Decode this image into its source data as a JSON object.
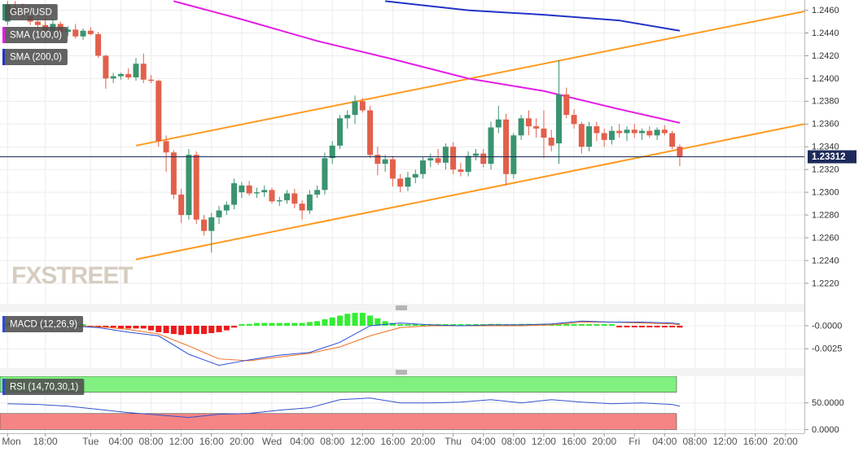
{
  "chart_data": [
    {
      "type": "candlestick",
      "title": "GBP/USD",
      "watermark": "FXSTREET",
      "up_color": "#3a9470",
      "down_color": "#e2604c",
      "last_price_color": "#1c2b5a",
      "xlim": [
        -12,
        94.5
      ],
      "ylim": [
        1.2202,
        1.2469
      ],
      "grid": true,
      "yticks": [
        {
          "value": 1.222,
          "label": "1.2220"
        },
        {
          "value": 1.224,
          "label": "1.2240"
        },
        {
          "value": 1.226,
          "label": "1.2260"
        },
        {
          "value": 1.228,
          "label": "1.2280"
        },
        {
          "value": 1.23,
          "label": "1.2300"
        },
        {
          "value": 1.232,
          "label": "1.2320"
        },
        {
          "value": 1.234,
          "label": "1.2340"
        },
        {
          "value": 1.236,
          "label": "1.2360"
        },
        {
          "value": 1.238,
          "label": "1.2380"
        },
        {
          "value": 1.24,
          "label": "1.2400"
        },
        {
          "value": 1.242,
          "label": "1.2420"
        },
        {
          "value": 1.244,
          "label": "1.2440"
        },
        {
          "value": 1.246,
          "label": "1.2460"
        }
      ],
      "x": [
        -11,
        -10,
        -9,
        -8,
        -7,
        -6,
        -5,
        -4,
        -3,
        -2,
        -1,
        0,
        1,
        2,
        3,
        4,
        5,
        6,
        7,
        8,
        9,
        10,
        11,
        12,
        13,
        14,
        15,
        16,
        17,
        18,
        19,
        20,
        21,
        22,
        23,
        24,
        25,
        26,
        27,
        28,
        29,
        30,
        31,
        32,
        33,
        34,
        35,
        36,
        37,
        38,
        39,
        40,
        41,
        42,
        43,
        44,
        45,
        46,
        47,
        48,
        49,
        50,
        51,
        52,
        53,
        54,
        55,
        56,
        57,
        58,
        59,
        60,
        61,
        62,
        63,
        64,
        65,
        66,
        67,
        68,
        69,
        70,
        71,
        72,
        73,
        74,
        75,
        76,
        77,
        78
      ],
      "open": [
        1.245,
        1.2462,
        1.2458,
        1.2455,
        1.245,
        1.2447,
        1.2442,
        1.2448,
        1.2441,
        1.2443,
        1.2437,
        1.2442,
        1.2439,
        1.242,
        1.24,
        1.2402,
        1.2404,
        1.2401,
        1.2413,
        1.2399,
        1.2398,
        1.2345,
        1.2335,
        1.2298,
        1.228,
        1.2333,
        1.2276,
        1.2266,
        1.2278,
        1.2284,
        1.2289,
        1.23,
        1.2306,
        1.2299,
        1.23,
        1.2302,
        1.2292,
        1.2293,
        1.2299,
        1.229,
        1.2284,
        1.2298,
        1.2302,
        1.233,
        1.2341,
        1.2365,
        1.2368,
        1.238,
        1.2372,
        1.2333,
        1.2325,
        1.2329,
        1.2312,
        1.2305,
        1.2313,
        1.2316,
        1.2328,
        1.233,
        1.2326,
        1.234,
        1.232,
        1.2318,
        1.2332,
        1.2334,
        1.2325,
        1.2357,
        1.2364,
        1.2316,
        1.235,
        1.2365,
        1.2358,
        1.2356,
        1.2348,
        1.2343,
        1.2386,
        1.2368,
        1.236,
        1.234,
        1.2358,
        1.2352,
        1.2346,
        1.2354,
        1.2352,
        1.2355,
        1.2352,
        1.2354,
        1.235,
        1.2355,
        1.2352,
        1.234
      ],
      "high": [
        1.2468,
        1.2468,
        1.2466,
        1.246,
        1.2458,
        1.2455,
        1.2452,
        1.245,
        1.2446,
        1.2448,
        1.2444,
        1.2445,
        1.2441,
        1.2421,
        1.2405,
        1.2405,
        1.2409,
        1.2418,
        1.2422,
        1.2403,
        1.2399,
        1.235,
        1.2337,
        1.2303,
        1.2338,
        1.2336,
        1.228,
        1.2282,
        1.2288,
        1.2292,
        1.2312,
        1.2309,
        1.231,
        1.2304,
        1.2306,
        1.2304,
        1.2296,
        1.2302,
        1.2303,
        1.2293,
        1.2302,
        1.2306,
        1.2335,
        1.2345,
        1.2368,
        1.2372,
        1.2385,
        1.2383,
        1.2376,
        1.234,
        1.2333,
        1.2332,
        1.2316,
        1.2318,
        1.232,
        1.2331,
        1.2334,
        1.2338,
        1.2343,
        1.2344,
        1.2326,
        1.2336,
        1.2338,
        1.2338,
        1.2362,
        1.2376,
        1.2369,
        1.2352,
        1.2368,
        1.2372,
        1.2365,
        1.2372,
        1.2355,
        1.2416,
        1.2392,
        1.2373,
        1.2362,
        1.2362,
        1.2362,
        1.2356,
        1.2358,
        1.236,
        1.2358,
        1.236,
        1.2356,
        1.2358,
        1.2357,
        1.2359,
        1.2354,
        1.2342
      ],
      "low": [
        1.2447,
        1.2455,
        1.2452,
        1.2447,
        1.2445,
        1.244,
        1.2438,
        1.2439,
        1.2437,
        1.2435,
        1.2434,
        1.2438,
        1.2418,
        1.2391,
        1.2396,
        1.2399,
        1.2399,
        1.2398,
        1.2396,
        1.2396,
        1.234,
        1.2318,
        1.2294,
        1.2273,
        1.2276,
        1.2272,
        1.2262,
        1.2247,
        1.2272,
        1.228,
        1.2285,
        1.2295,
        1.2297,
        1.2295,
        1.2296,
        1.229,
        1.2288,
        1.229,
        1.2286,
        1.2276,
        1.2281,
        1.2295,
        1.2298,
        1.2325,
        1.2338,
        1.2356,
        1.236,
        1.237,
        1.233,
        1.2315,
        1.2318,
        1.2305,
        1.23,
        1.2301,
        1.2308,
        1.2312,
        1.2322,
        1.2324,
        1.232,
        1.2316,
        1.2314,
        1.2314,
        1.2328,
        1.2322,
        1.232,
        1.2352,
        1.2306,
        1.2312,
        1.2346,
        1.235,
        1.2348,
        1.233,
        1.2336,
        1.2325,
        1.2365,
        1.2356,
        1.2334,
        1.2336,
        1.2345,
        1.234,
        1.2342,
        1.2348,
        1.2345,
        1.2348,
        1.2346,
        1.2348,
        1.2346,
        1.235,
        1.2338,
        1.2323
      ],
      "close": [
        1.2465,
        1.2458,
        1.2455,
        1.245,
        1.2447,
        1.2442,
        1.2448,
        1.2441,
        1.2443,
        1.2437,
        1.2442,
        1.2439,
        1.242,
        1.24,
        1.2402,
        1.2404,
        1.2401,
        1.2413,
        1.2399,
        1.2398,
        1.2345,
        1.2335,
        1.2298,
        1.228,
        1.2333,
        1.2276,
        1.2266,
        1.2278,
        1.2284,
        1.2289,
        1.2308,
        1.2306,
        1.2299,
        1.23,
        1.2302,
        1.2292,
        1.2293,
        1.2299,
        1.229,
        1.2284,
        1.2298,
        1.2302,
        1.233,
        1.2341,
        1.2365,
        1.2368,
        1.238,
        1.2372,
        1.2333,
        1.2325,
        1.2329,
        1.2312,
        1.2305,
        1.2313,
        1.2316,
        1.2328,
        1.233,
        1.2326,
        1.234,
        1.232,
        1.2318,
        1.2332,
        1.2334,
        1.2325,
        1.2357,
        1.2364,
        1.2316,
        1.235,
        1.2365,
        1.2358,
        1.2356,
        1.2348,
        1.2341,
        1.2386,
        1.2368,
        1.236,
        1.234,
        1.2358,
        1.2352,
        1.2346,
        1.2354,
        1.2352,
        1.2355,
        1.2352,
        1.2354,
        1.235,
        1.2355,
        1.2352,
        1.234,
        1.23312
      ],
      "lines": [
        {
          "name": "SMA (100,0)",
          "color": "#e41ee4",
          "x": [
            11,
            20,
            30,
            40,
            50,
            60,
            70,
            78
          ],
          "values": [
            1.2468,
            1.2452,
            1.2433,
            1.2417,
            1.24,
            1.2389,
            1.2373,
            1.2361
          ]
        },
        {
          "name": "SMA (200,0)",
          "color": "#2234c8",
          "x": [
            39,
            50,
            60,
            70,
            78
          ],
          "values": [
            1.2468,
            1.246,
            1.2456,
            1.2451,
            1.2442
          ]
        }
      ],
      "trendlines": [
        {
          "color": "#ff9a1f",
          "x": [
            6,
            94.5
          ],
          "values": [
            1.2341,
            1.2459
          ]
        },
        {
          "color": "#ff9a1f",
          "x": [
            6,
            94.5
          ],
          "values": [
            1.2241,
            1.236
          ]
        }
      ]
    },
    {
      "type": "macd",
      "title": "MACD (12,26,9)",
      "xlim": [
        -12,
        94.5
      ],
      "ylim": [
        -0.0046,
        0.0015
      ],
      "grid": true,
      "yticks": [
        {
          "value": -0.0025,
          "label": "-0.0025"
        },
        {
          "value": 0,
          "label": "-0.0000"
        }
      ],
      "histogram": {
        "up_color": "#33ee33",
        "down_color": "#ee1a1a",
        "x": [
          -11,
          -10,
          -9,
          -8,
          -7,
          -6,
          -5,
          -4,
          -3,
          -2,
          -1,
          0,
          1,
          2,
          3,
          4,
          5,
          6,
          7,
          8,
          9,
          10,
          11,
          12,
          13,
          14,
          15,
          16,
          17,
          18,
          19,
          20,
          21,
          22,
          23,
          24,
          25,
          26,
          27,
          28,
          29,
          30,
          31,
          32,
          33,
          34,
          35,
          36,
          37,
          38,
          39,
          40,
          41,
          42,
          43,
          44,
          45,
          46,
          47,
          48,
          49,
          50,
          51,
          52,
          53,
          54,
          55,
          56,
          57,
          58,
          59,
          60,
          61,
          62,
          63,
          64,
          65,
          66,
          67,
          68,
          69,
          70,
          71,
          72,
          73,
          74,
          75,
          76,
          77,
          78
        ],
        "values": [
          0.0001,
          0.0001,
          0.0001,
          0.0001,
          0.0001,
          0.0001,
          0,
          0,
          0,
          0,
          0,
          -0.0001,
          -0.0001,
          -0.0002,
          -0.0002,
          -0.0003,
          -0.0003,
          -0.0003,
          -0.0003,
          -0.0005,
          -0.0007,
          -0.0008,
          -0.0009,
          -0.001,
          -0.0009,
          -0.0009,
          -0.0009,
          -0.0008,
          -0.0007,
          -0.0005,
          -0.0002,
          0.0001,
          0.0002,
          0.0003,
          0.0003,
          0.0003,
          0.0003,
          0.0003,
          0.0003,
          0.0003,
          0.0004,
          0.0005,
          0.0007,
          0.0009,
          0.0011,
          0.0013,
          0.0014,
          0.0014,
          0.0011,
          0.0008,
          0.0005,
          0.0003,
          0.0001,
          0.0001,
          0.0001,
          0.0001,
          0,
          0,
          0.0001,
          0,
          0,
          0.0001,
          0.0001,
          0.0001,
          0.0002,
          0.0002,
          0.0001,
          0.0001,
          0.0002,
          0.0002,
          0.0001,
          0.0001,
          0.0001,
          0.0002,
          0.0002,
          0.0001,
          0,
          0,
          0,
          0,
          0,
          -0.0001,
          -0.0001,
          -0.0001,
          -0.0001,
          -0.0001,
          -0.0001,
          -0.0001,
          -0.0001,
          -0.0002
        ]
      },
      "macd_line": {
        "color": "#2a4bd7",
        "x": [
          -11,
          -7,
          -3,
          1,
          5,
          9,
          13,
          17,
          21,
          25,
          29,
          33,
          37,
          41,
          45,
          49,
          53,
          57,
          61,
          65,
          69,
          73,
          77,
          78
        ],
        "values": [
          0.0003,
          0.0002,
          0,
          -0.0002,
          -0.0007,
          -0.0011,
          -0.0031,
          -0.0043,
          -0.0037,
          -0.0032,
          -0.0029,
          -0.0018,
          0,
          0.0003,
          0.0001,
          0,
          0.0001,
          0.0001,
          0.0002,
          0.0005,
          0.0004,
          0.0004,
          0.0003,
          0.0002
        ]
      },
      "signal_line": {
        "color": "#f07020",
        "x": [
          -11,
          -7,
          -3,
          1,
          5,
          9,
          13,
          17,
          21,
          25,
          29,
          33,
          37,
          41,
          45,
          49,
          53,
          57,
          61,
          65,
          69,
          73,
          77,
          78
        ],
        "values": [
          0.0002,
          0.0001,
          0,
          -0.0001,
          -0.0004,
          -0.0009,
          -0.0022,
          -0.0036,
          -0.0038,
          -0.0034,
          -0.003,
          -0.0023,
          -0.0011,
          -0.0002,
          0,
          0,
          0,
          0,
          0.0001,
          0.0004,
          0.0004,
          0.0003,
          0.0002,
          0.0001
        ]
      }
    },
    {
      "type": "rsi",
      "title": "RSI (14,70,30,1)",
      "xlim": [
        -12,
        94.5
      ],
      "ylim": [
        -7,
        100
      ],
      "grid": true,
      "yticks": [
        {
          "value": 0,
          "label": "0.0000"
        },
        {
          "value": 50,
          "label": "50.0000"
        }
      ],
      "bands": [
        {
          "from": 70,
          "to": 100,
          "color": "#80f080"
        },
        {
          "from": 0,
          "to": 30,
          "color": "#f58585"
        }
      ],
      "line": {
        "color": "#3352cc",
        "x": [
          -11,
          -7,
          -3,
          1,
          5,
          9,
          13,
          17,
          21,
          25,
          29,
          33,
          37,
          41,
          45,
          49,
          53,
          57,
          61,
          65,
          69,
          73,
          77,
          78
        ],
        "values": [
          48.5,
          47.0,
          43.9,
          37.9,
          31.8,
          27.3,
          22.7,
          28.8,
          30.3,
          36.4,
          40.9,
          56.1,
          59.1,
          50.0,
          50.0,
          51.5,
          56.1,
          50.0,
          56.1,
          51.5,
          48.5,
          50.0,
          47.0,
          43.9
        ]
      },
      "xticks": [
        {
          "value": -11,
          "label": "Mon"
        },
        {
          "value": -6,
          "label": "18:00"
        },
        {
          "value": 0,
          "label": "Tue"
        },
        {
          "value": 4,
          "label": "04:00"
        },
        {
          "value": 8,
          "label": "08:00"
        },
        {
          "value": 12,
          "label": "12:00"
        },
        {
          "value": 16,
          "label": "16:00"
        },
        {
          "value": 20,
          "label": "20:00"
        },
        {
          "value": 24,
          "label": "Wed"
        },
        {
          "value": 28,
          "label": "04:00"
        },
        {
          "value": 32,
          "label": "08:00"
        },
        {
          "value": 36,
          "label": "12:00"
        },
        {
          "value": 40,
          "label": "16:00"
        },
        {
          "value": 44,
          "label": "20:00"
        },
        {
          "value": 48,
          "label": "Thu"
        },
        {
          "value": 52,
          "label": "04:00"
        },
        {
          "value": 56,
          "label": "08:00"
        },
        {
          "value": 60,
          "label": "12:00"
        },
        {
          "value": 64,
          "label": "16:00"
        },
        {
          "value": 68,
          "label": "20:00"
        },
        {
          "value": 72,
          "label": "Fri"
        },
        {
          "value": 76,
          "label": "04:00"
        },
        {
          "value": 80,
          "label": "08:00"
        },
        {
          "value": 84,
          "label": "12:00"
        },
        {
          "value": 88,
          "label": "16:00"
        },
        {
          "value": 92,
          "label": "20:00"
        }
      ]
    }
  ]
}
